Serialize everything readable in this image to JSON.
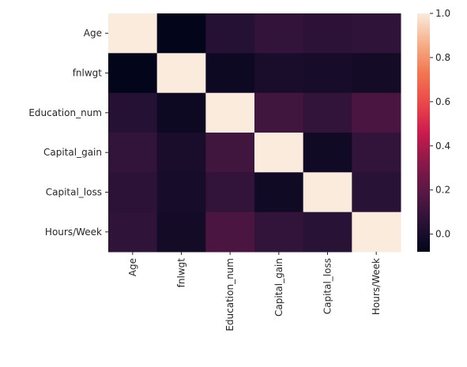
{
  "chart_data": {
    "type": "heatmap",
    "title": "",
    "xlabel": "",
    "ylabel": "",
    "row_labels": [
      "Age",
      "fnlwgt",
      "Education_num",
      "Capital_gain",
      "Capital_loss",
      "Hours/Week"
    ],
    "col_labels": [
      "Age",
      "fnlwgt",
      "Education_num",
      "Capital_gain",
      "Capital_loss",
      "Hours/Week"
    ],
    "values": [
      [
        1.0,
        -0.08,
        0.04,
        0.08,
        0.06,
        0.07
      ],
      [
        -0.08,
        1.0,
        -0.04,
        0.0,
        -0.01,
        -0.02
      ],
      [
        0.04,
        -0.04,
        1.0,
        0.12,
        0.08,
        0.15
      ],
      [
        0.08,
        0.0,
        0.12,
        1.0,
        -0.03,
        0.08
      ],
      [
        0.06,
        -0.01,
        0.08,
        -0.03,
        1.0,
        0.05
      ],
      [
        0.07,
        -0.02,
        0.15,
        0.08,
        0.05,
        1.0
      ]
    ],
    "colormap": "rocket",
    "colorbar": {
      "range": [
        -0.08,
        1.0
      ],
      "ticks": [
        "0.0",
        "0.2",
        "0.4",
        "0.6",
        "0.8",
        "1.0"
      ],
      "tick_values": [
        0.0,
        0.2,
        0.4,
        0.6,
        0.8,
        1.0
      ],
      "position": "right"
    },
    "grid": false
  }
}
